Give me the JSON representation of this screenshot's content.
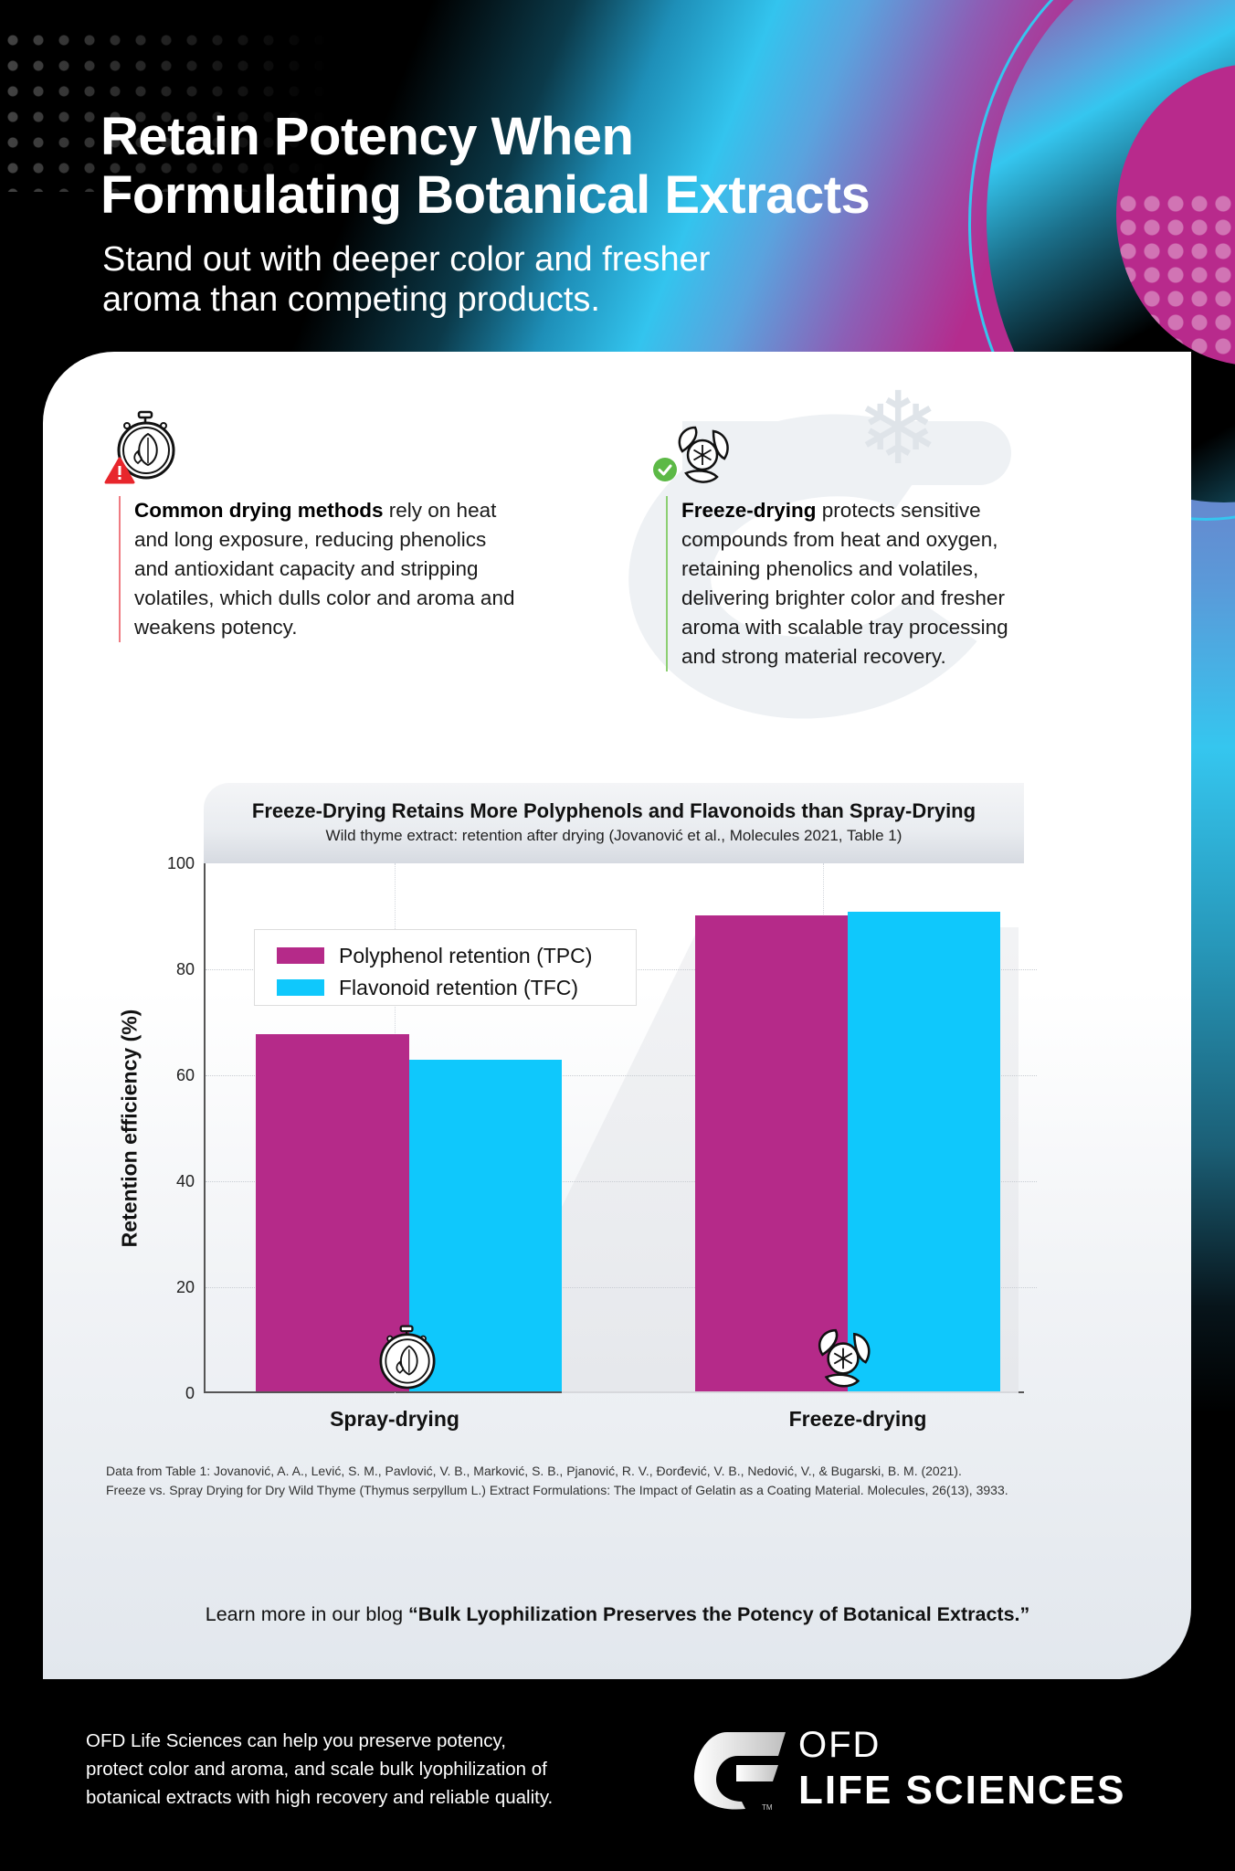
{
  "header": {
    "title_line1": "Retain Potency When",
    "title_line2": "Formulating Botanical Extracts",
    "subtitle_line1": "Stand out with deeper color and fresher",
    "subtitle_line2": "aroma than competing products."
  },
  "methods": [
    {
      "icon": "stopwatch-leaf-flame-icon",
      "badge": "warning-triangle-icon",
      "badge_color": "#e8262c",
      "accent_color": "#ef7b82",
      "bold": "Common drying methods",
      "lines": [
        " rely on heat",
        "and long exposure, reducing phenolics",
        "and antioxidant capacity and stripping",
        "volatiles, which dulls color and aroma and",
        "weakens potency."
      ]
    },
    {
      "icon": "snowflake-leaves-icon",
      "badge": "checkmark-circle-icon",
      "badge_color": "#5cb946",
      "accent_color": "#8ccf72",
      "bold": "Freeze-drying",
      "lines": [
        " protects sensitive",
        "compounds from heat and oxygen,",
        "retaining phenolics and volatiles,",
        "delivering brighter color and fresher",
        "aroma with scalable tray processing",
        "and strong material recovery."
      ]
    }
  ],
  "chart": {
    "title": "Freeze-Drying Retains More Polyphenols and Flavonoids than Spray-Drying",
    "subtitle": "Wild thyme extract: retention after drying (Jovanović et al., Molecules 2021, Table 1)",
    "ylabel": "Retention efficiency (%)",
    "yticks": [
      "0",
      "20",
      "40",
      "60",
      "80",
      "100"
    ],
    "legend": [
      "Polyphenol retention (TPC)",
      "Flavonoid retention (TFC)"
    ],
    "categories": [
      "Spray-drying",
      "Freeze-drying"
    ]
  },
  "chart_data": {
    "type": "bar",
    "title": "Freeze-Drying Retains More Polyphenols and Flavonoids than Spray-Drying",
    "subtitle": "Wild thyme extract: retention after drying (Jovanović et al., Molecules 2021, Table 1)",
    "xlabel": "",
    "ylabel": "Retention efficiency (%)",
    "ylim": [
      0,
      100
    ],
    "yticks": [
      0,
      20,
      40,
      60,
      80,
      100
    ],
    "categories": [
      "Spray-drying",
      "Freeze-drying"
    ],
    "series": [
      {
        "name": "Polyphenol retention (TPC)",
        "color": "#b52a89",
        "values": [
          67.4,
          89.8
        ]
      },
      {
        "name": "Flavonoid retention (TFC)",
        "color": "#0fc8fc",
        "values": [
          62.6,
          90.5
        ]
      }
    ],
    "grid": {
      "horizontal": true,
      "vertical": true,
      "style": "dotted"
    },
    "legend_position": "upper-left"
  },
  "citation": {
    "line1": "Data from Table 1: Jovanović, A. A., Lević, S. M., Pavlović, V. B., Marković, S. B., Pjanović, R. V., Đorđević, V. B., Nedović, V., & Bugarski, B. M. (2021).",
    "line2": "Freeze vs. Spray Drying for Dry Wild Thyme (Thymus serpyllum L.) Extract Formulations: The Impact of Gelatin as a Coating Material. Molecules, 26(13), 3933."
  },
  "blog": {
    "prefix": "Learn more in our blog ",
    "title": "“Bulk Lyophilization Preserves the Potency of Botanical Extracts.”"
  },
  "footer": {
    "line1": "OFD Life Sciences can help you preserve potency,",
    "line2": "protect color and aroma, and scale bulk lyophilization of",
    "line3": "botanical extracts with high recovery and reliable quality.",
    "logo_top": "OFD",
    "logo_bottom": "LIFE SCIENCES",
    "logo_tm": "TM"
  }
}
